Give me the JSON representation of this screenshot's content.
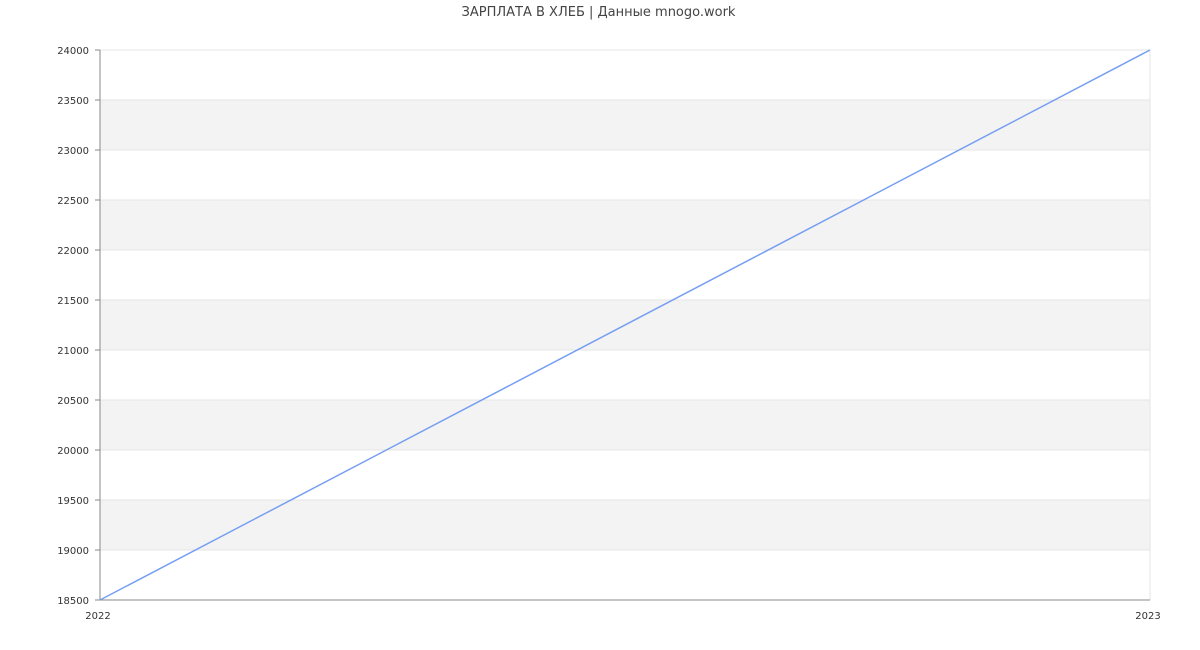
{
  "chart_data": {
    "type": "line",
    "title": "ЗАРПЛАТА В ХЛЕБ | Данные mnogo.work",
    "x": [
      "2022",
      "2023"
    ],
    "series": [
      {
        "values": [
          18500,
          24000
        ],
        "color": "#769ff2"
      }
    ],
    "xticks": [
      "2022",
      "2023"
    ],
    "yticks": [
      18500,
      19000,
      19500,
      20000,
      20500,
      21000,
      21500,
      22000,
      22500,
      23000,
      23500,
      24000
    ],
    "ylim": [
      18500,
      24000
    ],
    "grid": true,
    "band_color": "#f3f3f3",
    "grid_color": "#e4e4e4",
    "axis_color": "#888888"
  }
}
